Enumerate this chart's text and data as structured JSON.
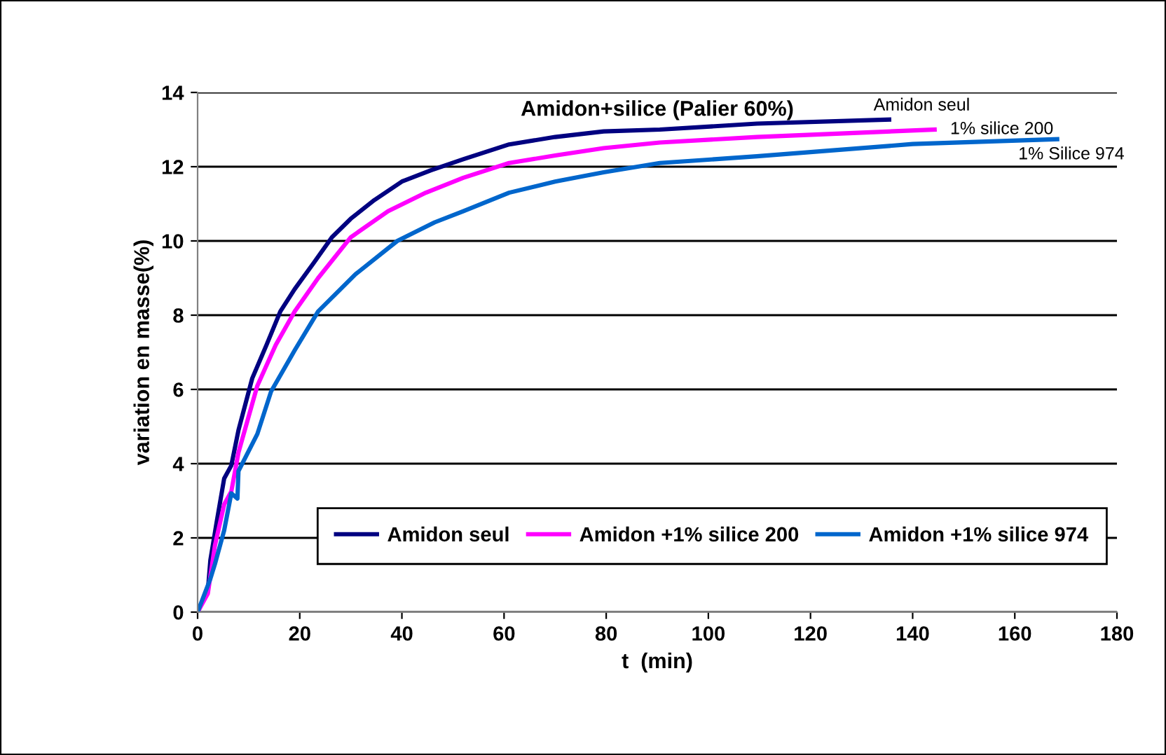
{
  "chart_data": {
    "type": "line",
    "title": "Amidon+silice (Palier 60%)",
    "xlabel": "t  (min)",
    "ylabel": "variation en masse(%)",
    "xlim": [
      0,
      180
    ],
    "xticks": [
      0,
      20,
      40,
      60,
      80,
      100,
      120,
      140,
      160,
      180
    ],
    "ylim": [
      0,
      14
    ],
    "yticks": [
      0,
      2,
      4,
      6,
      8,
      10,
      12,
      14
    ],
    "grid": "y",
    "legend": "bottom right",
    "marker": "none",
    "line_style": "solid",
    "series": [
      {
        "name": "Amidon seul",
        "color": "#000080",
        "x": [
          0,
          2,
          2.5,
          3.7,
          5.2,
          6.6,
          8,
          10.7,
          13.5,
          16.2,
          19,
          22.7,
          26.3,
          30,
          34.6,
          40,
          45.6,
          52,
          61,
          70,
          79.5,
          90.5,
          109.5,
          135.4
        ],
        "values": [
          0,
          0.56,
          1.4,
          2.4,
          3.6,
          3.95,
          4.9,
          6.3,
          7.2,
          8.1,
          8.7,
          9.4,
          10.1,
          10.6,
          11.1,
          11.6,
          11.9,
          12.2,
          12.6,
          12.8,
          12.95,
          13.0,
          13.16,
          13.27
        ]
      },
      {
        "name": "Amidon +1% silice 200",
        "color": "#ff00ff",
        "x": [
          0,
          2,
          3.4,
          5.2,
          6.6,
          8,
          11.7,
          15.3,
          19,
          23.6,
          30,
          37.3,
          44.7,
          52,
          61,
          70,
          79.5,
          90.5,
          109.5,
          144.3
        ],
        "values": [
          0,
          0.5,
          1.8,
          2.9,
          3.25,
          4.3,
          6.1,
          7.2,
          8.1,
          9.0,
          10.1,
          10.8,
          11.3,
          11.7,
          12.1,
          12.3,
          12.5,
          12.65,
          12.8,
          13.0
        ]
      },
      {
        "name": "Amidon +1% silice 974",
        "color": "#0066cc",
        "x": [
          0,
          2.5,
          3.4,
          5.2,
          6.6,
          7.8,
          8,
          11.7,
          14.4,
          19,
          23.6,
          30.9,
          39.1,
          46.4,
          52,
          61,
          70,
          79.5,
          90.5,
          109.5,
          140,
          168.3
        ],
        "values": [
          0,
          0.9,
          1.3,
          2.2,
          3.2,
          3.06,
          3.8,
          4.8,
          5.95,
          7.05,
          8.1,
          9.1,
          10.0,
          10.5,
          10.8,
          11.3,
          11.6,
          11.85,
          12.1,
          12.28,
          12.61,
          12.74
        ]
      }
    ],
    "annotations": [
      "Amidon seul",
      "1% silice 200",
      "1% Silice 974"
    ]
  }
}
